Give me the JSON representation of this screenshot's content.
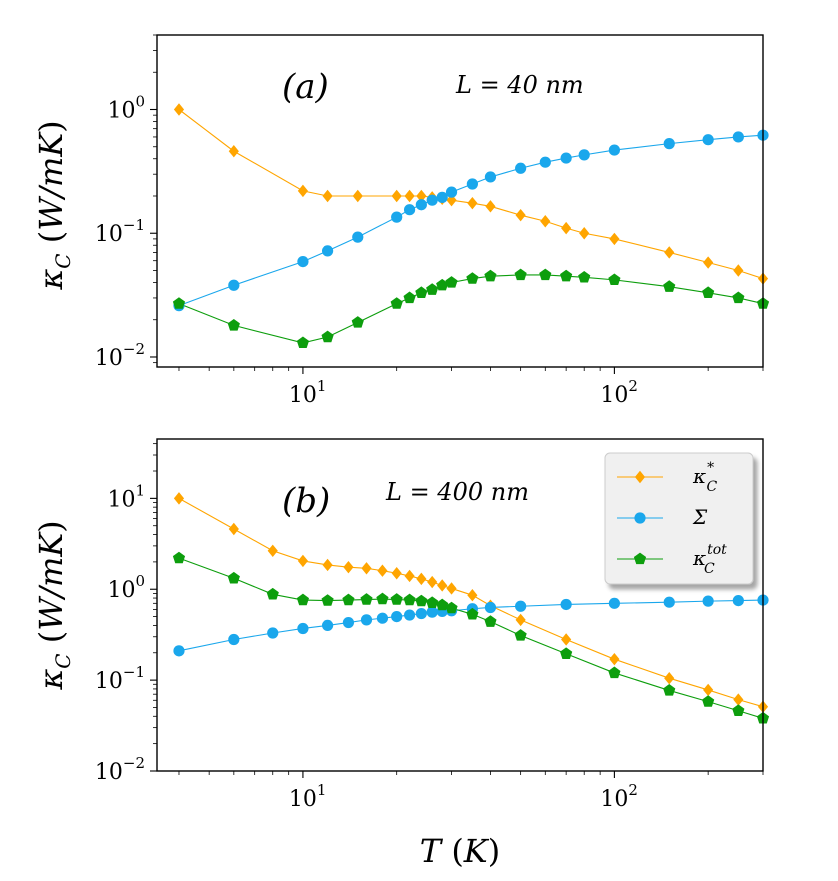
{
  "chart_data": [
    {
      "type": "line",
      "panel_label": "(a)",
      "annotation": "L = 40 nm",
      "xlabel": "T (K)",
      "ylabel": "κC (W/mK)",
      "xscale": "log",
      "yscale": "log",
      "xlim": [
        3.4,
        300
      ],
      "ylim": [
        0.0083,
        4.0
      ],
      "x_tick_labels": [
        {
          "base": "10",
          "exp": "1",
          "value": 10
        },
        {
          "base": "10",
          "exp": "2",
          "value": 100
        }
      ],
      "y_tick_labels": [
        {
          "base": "10",
          "exp": "0",
          "value": 1
        },
        {
          "base": "10",
          "exp": "−1",
          "value": 0.1
        },
        {
          "base": "10",
          "exp": "−2",
          "value": 0.01
        }
      ],
      "series": [
        {
          "name": "κC*",
          "color": "#ffa500",
          "marker": "diamond",
          "x": [
            4,
            6,
            10,
            12,
            15,
            20,
            22,
            24,
            26,
            28,
            30,
            35,
            40,
            50,
            60,
            70,
            80,
            100,
            150,
            200,
            250,
            300
          ],
          "y": [
            1.0,
            0.46,
            0.22,
            0.2,
            0.2,
            0.2,
            0.2,
            0.2,
            0.195,
            0.19,
            0.185,
            0.175,
            0.165,
            0.14,
            0.125,
            0.11,
            0.1,
            0.09,
            0.07,
            0.058,
            0.05,
            0.043
          ]
        },
        {
          "name": "Σ",
          "color": "#1aa7ec",
          "marker": "circle",
          "x": [
            4,
            6,
            10,
            12,
            15,
            20,
            22,
            24,
            26,
            28,
            30,
            35,
            40,
            50,
            60,
            70,
            80,
            100,
            150,
            200,
            250,
            300
          ],
          "y": [
            0.026,
            0.038,
            0.059,
            0.072,
            0.093,
            0.135,
            0.155,
            0.17,
            0.185,
            0.195,
            0.215,
            0.25,
            0.285,
            0.335,
            0.375,
            0.405,
            0.43,
            0.47,
            0.53,
            0.57,
            0.6,
            0.62
          ]
        },
        {
          "name": "κC tot",
          "color": "#0d9e0d",
          "marker": "pentagon",
          "x": [
            4,
            6,
            10,
            12,
            15,
            20,
            22,
            24,
            26,
            28,
            30,
            35,
            40,
            50,
            60,
            70,
            80,
            100,
            150,
            200,
            250,
            300
          ],
          "y": [
            0.027,
            0.018,
            0.013,
            0.0145,
            0.019,
            0.027,
            0.03,
            0.033,
            0.035,
            0.038,
            0.04,
            0.043,
            0.045,
            0.046,
            0.046,
            0.045,
            0.044,
            0.042,
            0.037,
            0.033,
            0.03,
            0.027
          ]
        }
      ]
    },
    {
      "type": "line",
      "panel_label": "(b)",
      "annotation": "L = 400 nm",
      "xlabel": "T (K)",
      "ylabel": "κC (W/mK)",
      "xscale": "log",
      "yscale": "log",
      "xlim": [
        3.4,
        300
      ],
      "ylim": [
        0.01,
        45
      ],
      "x_tick_labels": [
        {
          "base": "10",
          "exp": "1",
          "value": 10
        },
        {
          "base": "10",
          "exp": "2",
          "value": 100
        }
      ],
      "y_tick_labels": [
        {
          "base": "10",
          "exp": "1",
          "value": 10
        },
        {
          "base": "10",
          "exp": "0",
          "value": 1
        },
        {
          "base": "10",
          "exp": "−1",
          "value": 0.1
        },
        {
          "base": "10",
          "exp": "−2",
          "value": 0.01
        }
      ],
      "legend": {
        "placement": "top-right",
        "entries": [
          {
            "label": "κC*",
            "base": "κ",
            "sub": "C",
            "sup": "*"
          },
          {
            "label": "Σ",
            "base": "Σ",
            "sub": "",
            "sup": ""
          },
          {
            "label": "κC tot",
            "base": "κ",
            "sub": "C",
            "sup": "tot"
          }
        ]
      },
      "series": [
        {
          "name": "κC*",
          "color": "#ffa500",
          "marker": "diamond",
          "x": [
            4,
            6,
            8,
            10,
            12,
            14,
            16,
            18,
            20,
            22,
            24,
            26,
            28,
            30,
            35,
            40,
            50,
            70,
            100,
            150,
            200,
            250,
            300
          ],
          "y": [
            10.0,
            4.6,
            2.65,
            2.05,
            1.85,
            1.75,
            1.7,
            1.6,
            1.5,
            1.4,
            1.3,
            1.2,
            1.1,
            1.02,
            0.86,
            0.66,
            0.46,
            0.28,
            0.17,
            0.105,
            0.078,
            0.061,
            0.051
          ]
        },
        {
          "name": "Σ",
          "color": "#1aa7ec",
          "marker": "circle",
          "x": [
            4,
            6,
            8,
            10,
            12,
            14,
            16,
            18,
            20,
            22,
            24,
            26,
            28,
            30,
            35,
            40,
            50,
            70,
            100,
            150,
            200,
            250,
            300
          ],
          "y": [
            0.21,
            0.28,
            0.33,
            0.37,
            0.4,
            0.43,
            0.46,
            0.48,
            0.5,
            0.52,
            0.54,
            0.56,
            0.57,
            0.58,
            0.61,
            0.63,
            0.65,
            0.68,
            0.7,
            0.72,
            0.74,
            0.75,
            0.76
          ]
        },
        {
          "name": "κC tot",
          "color": "#0d9e0d",
          "marker": "pentagon",
          "x": [
            4,
            6,
            8,
            10,
            12,
            14,
            16,
            18,
            20,
            22,
            24,
            26,
            28,
            30,
            35,
            40,
            50,
            70,
            100,
            150,
            200,
            250,
            300
          ],
          "y": [
            2.2,
            1.32,
            0.88,
            0.76,
            0.75,
            0.76,
            0.77,
            0.78,
            0.77,
            0.76,
            0.74,
            0.71,
            0.67,
            0.62,
            0.53,
            0.44,
            0.31,
            0.195,
            0.12,
            0.077,
            0.058,
            0.046,
            0.038
          ]
        }
      ]
    }
  ]
}
